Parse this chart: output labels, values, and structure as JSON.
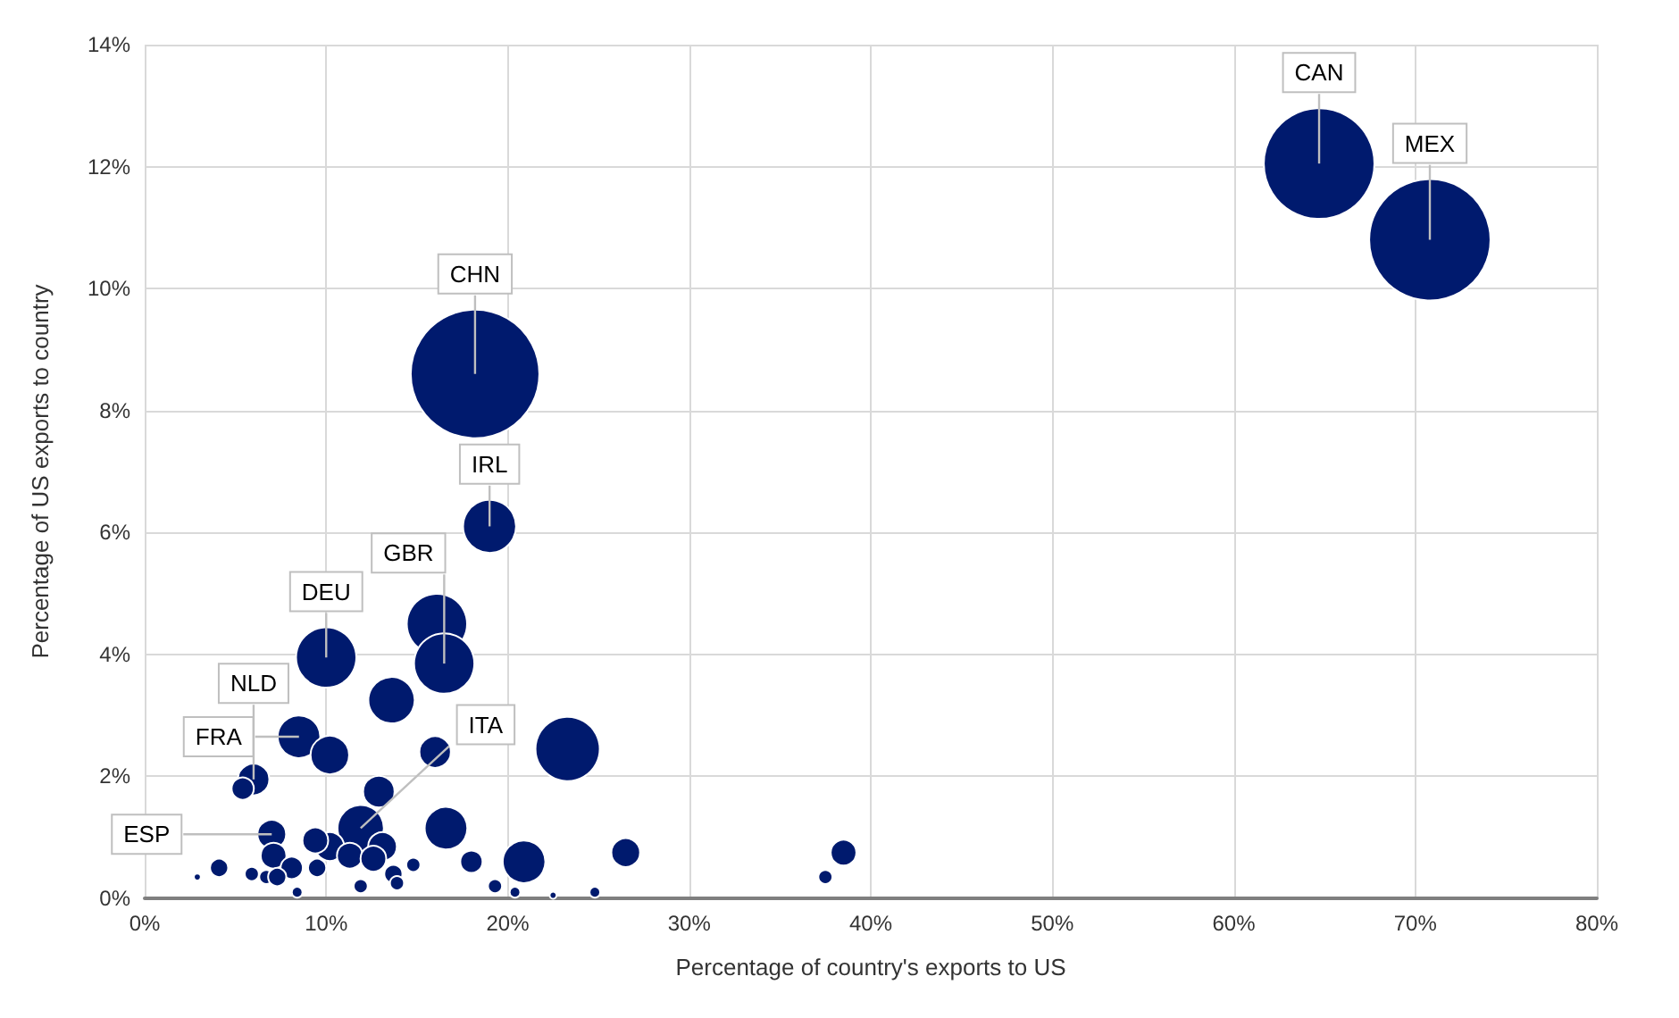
{
  "chart_data": {
    "type": "bubble",
    "xlabel": "Percentage of country's exports to US",
    "ylabel": "Percentage of US exports to country",
    "x": [
      64.7,
      70.8,
      18.2,
      19.0,
      16.1,
      16.5,
      10.0,
      13.6,
      23.3,
      8.5,
      10.2,
      16.0,
      12.9,
      6.0,
      5.4,
      16.6,
      11.9,
      7.0,
      20.9,
      26.5,
      38.5,
      37.5,
      18.0,
      10.2,
      13.1,
      9.4,
      7.1,
      8.1,
      11.3,
      9.5,
      12.6,
      13.7,
      13.9,
      11.9,
      14.8,
      5.9,
      6.7,
      4.1,
      2.9,
      19.3,
      20.4,
      22.5,
      24.8,
      8.4,
      7.3
    ],
    "values": [
      12.05,
      10.8,
      8.6,
      6.1,
      4.5,
      3.85,
      3.95,
      3.25,
      2.45,
      2.65,
      2.35,
      2.4,
      1.75,
      1.95,
      1.8,
      1.15,
      1.15,
      1.05,
      0.6,
      0.75,
      0.75,
      0.35,
      0.6,
      0.85,
      0.85,
      0.95,
      0.7,
      0.5,
      0.7,
      0.5,
      0.65,
      0.4,
      0.25,
      0.2,
      0.55,
      0.4,
      0.35,
      0.5,
      0.35,
      0.2,
      0.1,
      0.05,
      0.1,
      0.1,
      0.35
    ],
    "sizes": [
      0.74,
      0.89,
      1,
      0.17,
      0.22,
      0.22,
      0.22,
      0.13,
      0.25,
      0.11,
      0.09,
      0.06,
      0.06,
      0.06,
      0.03,
      0.11,
      0.13,
      0.05,
      0.11,
      0.05,
      0.04,
      0.012,
      0.03,
      0.05,
      0.05,
      0.04,
      0.04,
      0.03,
      0.04,
      0.02,
      0.04,
      0.02,
      0.012,
      0.012,
      0.012,
      0.012,
      0.012,
      0.02,
      0.003,
      0.012,
      0.007,
      0.003,
      0.007,
      0.007,
      0.02
    ],
    "color": "#001a6e",
    "xlim": [
      0,
      80
    ],
    "xticks": [
      {
        "value": 0,
        "label": "0%"
      },
      {
        "value": 10,
        "label": "10%"
      },
      {
        "value": 20,
        "label": "20%"
      },
      {
        "value": 30,
        "label": "30%"
      },
      {
        "value": 40,
        "label": "40%"
      },
      {
        "value": 50,
        "label": "50%"
      },
      {
        "value": 60,
        "label": "60%"
      },
      {
        "value": 70,
        "label": "70%"
      },
      {
        "value": 80,
        "label": "80%"
      }
    ],
    "ylim": [
      0,
      14
    ],
    "yticks": [
      {
        "value": 0,
        "label": "0%"
      },
      {
        "value": 2,
        "label": "2%"
      },
      {
        "value": 4,
        "label": "4%"
      },
      {
        "value": 6,
        "label": "6%"
      },
      {
        "value": 8,
        "label": "8%"
      },
      {
        "value": 10,
        "label": "10%"
      },
      {
        "value": 12,
        "label": "12%"
      },
      {
        "value": 14,
        "label": "14%"
      }
    ],
    "grid": true,
    "annotations": [
      {
        "text": "CAN",
        "x": 64.7,
        "y": 12.05
      },
      {
        "text": "MEX",
        "x": 70.8,
        "y": 10.8
      },
      {
        "text": "CHN",
        "x": 18.2,
        "y": 8.6
      },
      {
        "text": "IRL",
        "x": 19.0,
        "y": 6.1
      },
      {
        "text": "GBR",
        "x": 16.5,
        "y": 3.85
      },
      {
        "text": "DEU",
        "x": 10.0,
        "y": 3.95
      },
      {
        "text": "FRA",
        "x": 8.5,
        "y": 2.65
      },
      {
        "text": "NLD",
        "x": 6.0,
        "y": 1.95
      },
      {
        "text": "ITA",
        "x": 11.9,
        "y": 1.15
      },
      {
        "text": "ESP",
        "x": 7.0,
        "y": 1.05
      }
    ]
  }
}
